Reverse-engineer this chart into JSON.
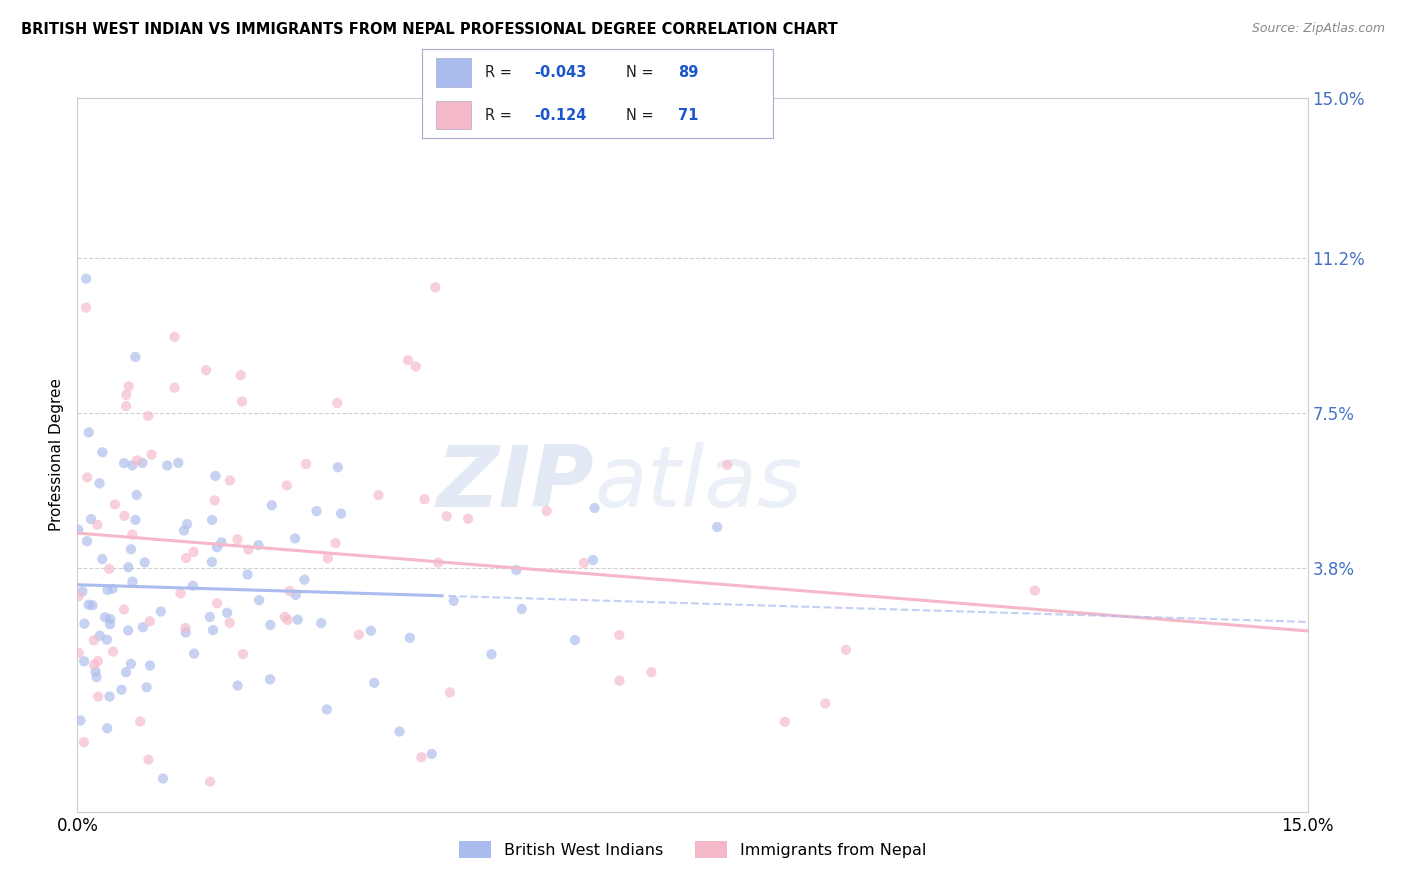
{
  "title": "BRITISH WEST INDIAN VS IMMIGRANTS FROM NEPAL PROFESSIONAL DEGREE CORRELATION CHART",
  "source": "Source: ZipAtlas.com",
  "ylabel": "Professional Degree",
  "x_min": 0.0,
  "x_max": 0.15,
  "y_min": -0.02,
  "y_max": 0.15,
  "y_ticks": [
    0.038,
    0.075,
    0.112,
    0.15
  ],
  "y_tick_labels": [
    "3.8%",
    "7.5%",
    "11.2%",
    "15.0%"
  ],
  "x_ticks": [
    0.0,
    0.15
  ],
  "x_tick_labels": [
    "0.0%",
    "15.0%"
  ],
  "series1_label": "British West Indians",
  "series1_color": "#aabbee",
  "series1_R": -0.043,
  "series1_N": 89,
  "series2_label": "Immigrants from Nepal",
  "series2_color": "#f5b8c8",
  "series2_R": -0.124,
  "series2_N": 71,
  "legend_R_color": "#1a56cc",
  "watermark_zip": "ZIP",
  "watermark_atlas": "atlas",
  "background_color": "#ffffff",
  "plot_bg_color": "#ffffff",
  "grid_color": "#cccccc",
  "scatter_alpha": 0.65,
  "scatter_size": 55
}
